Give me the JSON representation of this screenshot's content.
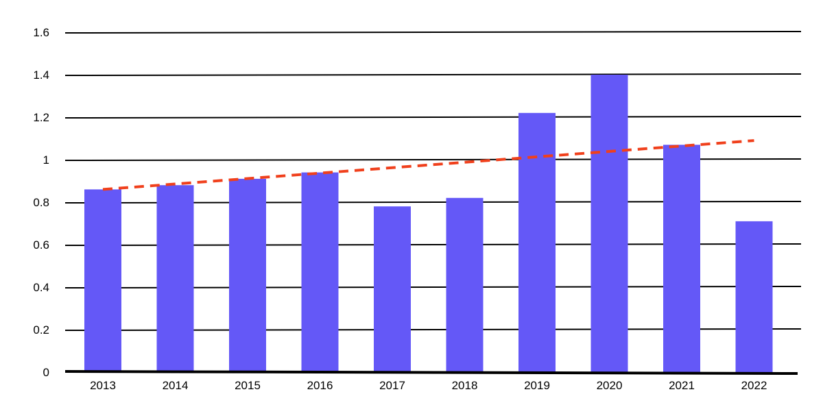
{
  "chart_data": {
    "type": "bar",
    "categories": [
      "2013",
      "2014",
      "2015",
      "2016",
      "2017",
      "2018",
      "2019",
      "2020",
      "2021",
      "2022"
    ],
    "series": [
      {
        "values": [
          0.86,
          0.88,
          0.91,
          0.94,
          0.78,
          0.82,
          1.22,
          1.4,
          1.07,
          0.71
        ]
      }
    ],
    "trendline": {
      "style": "dashed",
      "start": 0.86,
      "end": 1.09
    },
    "ylim": [
      0,
      1.6
    ],
    "yticks": [
      "0",
      "0.2",
      "0.4",
      "0.6",
      "0.8",
      "1",
      "1.2",
      "1.4",
      "1.6"
    ],
    "grid": true,
    "legend": "none",
    "title": "",
    "xlabel": "",
    "ylabel": ""
  },
  "colors": {
    "bar": "#6458f7",
    "trendline": "#f0401c",
    "grid": "#000000",
    "text": "#000000"
  }
}
